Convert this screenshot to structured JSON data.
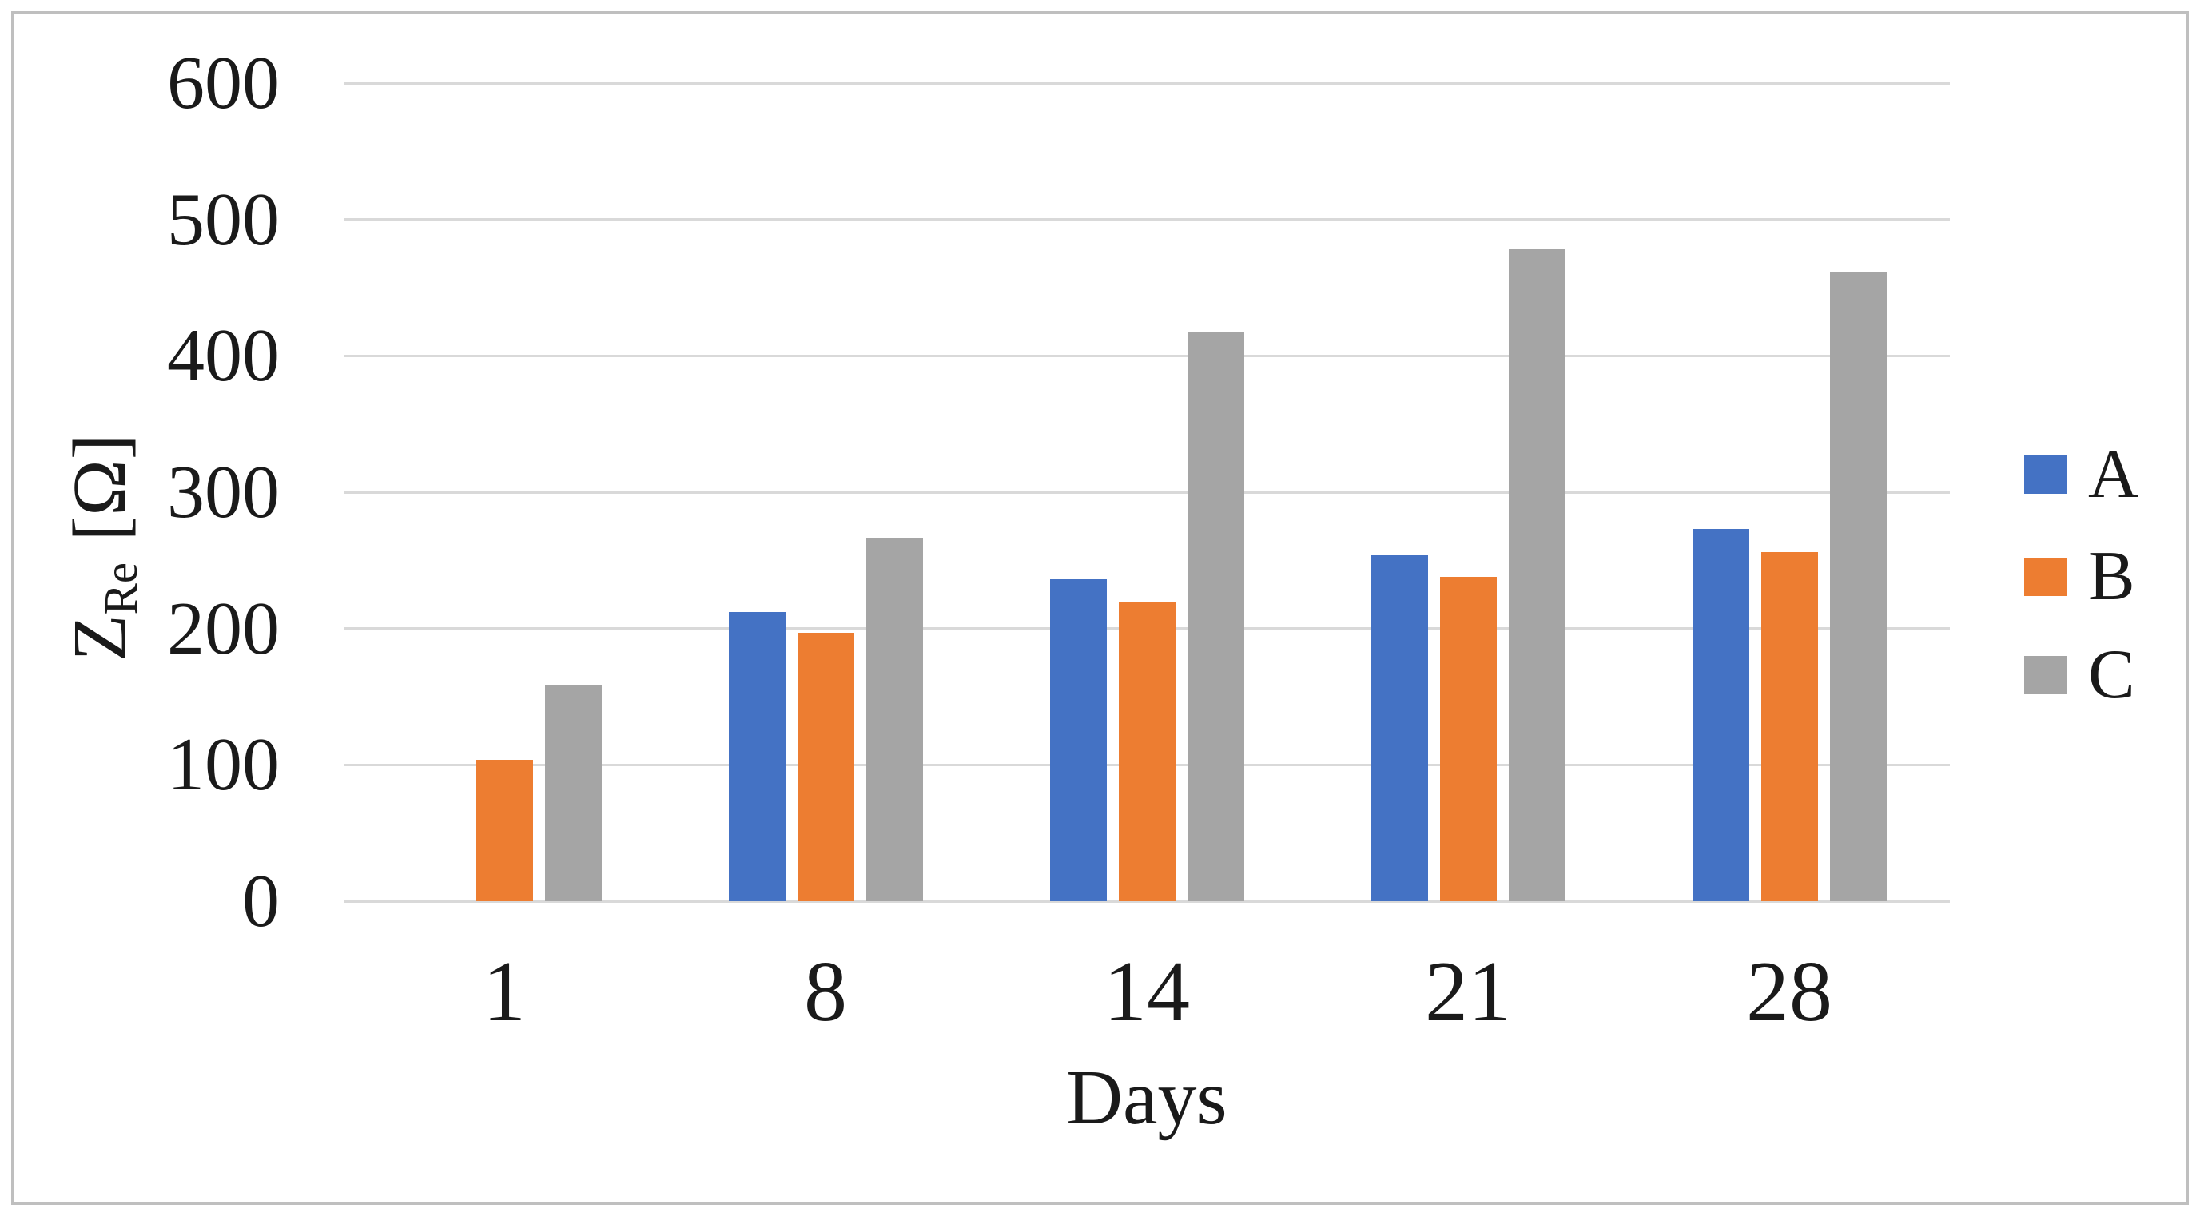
{
  "chart_data": {
    "type": "bar",
    "title": "",
    "xlabel": "Days",
    "ylabel": "Z_Re [Ω]",
    "ylabel_parts": {
      "symbol": "Z",
      "subscript": "Re",
      "unit": "[Ω]"
    },
    "categories": [
      "1",
      "8",
      "14",
      "21",
      "28"
    ],
    "series": [
      {
        "name": "A",
        "color": "#4472c4",
        "values": [
          0,
          212,
          236,
          254,
          273
        ]
      },
      {
        "name": "B",
        "color": "#ed7d31",
        "values": [
          104,
          197,
          220,
          238,
          256
        ]
      },
      {
        "name": "C",
        "color": "#a5a5a5",
        "values": [
          158,
          266,
          418,
          478,
          462
        ]
      }
    ],
    "y_ticks": [
      0,
      100,
      200,
      300,
      400,
      500,
      600
    ],
    "ylim": [
      0,
      600
    ],
    "grid": true,
    "legend_position": "right",
    "legend_labels": [
      "A",
      "B",
      "C"
    ]
  },
  "style": {
    "background": "#ffffff",
    "frame_border_color": "#bfbfbf",
    "gridline_color": "#d9d9d9",
    "text_color": "#1a1a1a"
  }
}
